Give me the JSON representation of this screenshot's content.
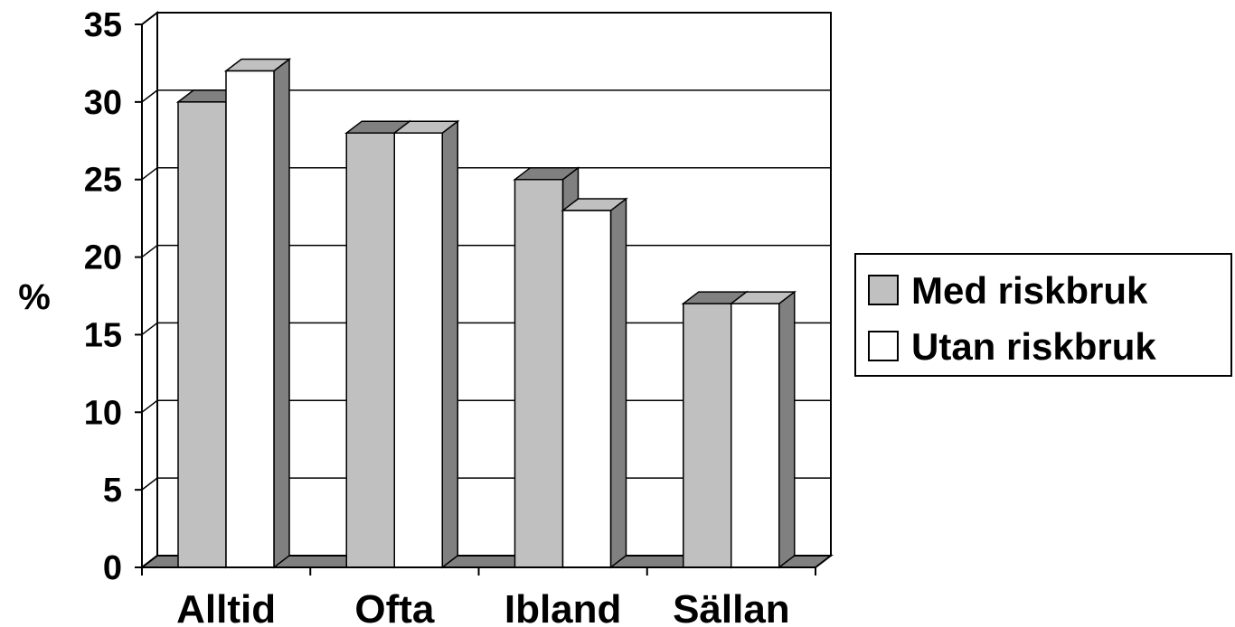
{
  "chart_data": {
    "type": "bar",
    "categories": [
      "Alltid",
      "Ofta",
      "Ibland",
      "Sällan"
    ],
    "series": [
      {
        "name": "Med riskbruk",
        "values": [
          30,
          28,
          25,
          17
        ],
        "color": "#c0c0c0"
      },
      {
        "name": "Utan riskbruk",
        "values": [
          32,
          28,
          23,
          17
        ],
        "color": "#ffffff"
      }
    ],
    "title": "",
    "xlabel": "",
    "ylabel": "%",
    "ylim": [
      0,
      35
    ],
    "yticks": [
      "0",
      "5",
      "10",
      "15",
      "20",
      "25",
      "30",
      "35"
    ],
    "grid": true,
    "legend_position": "right",
    "style": "3d-clustered",
    "colors": {
      "side": "#808080",
      "floor": "#808080",
      "outline": "#000000"
    }
  }
}
